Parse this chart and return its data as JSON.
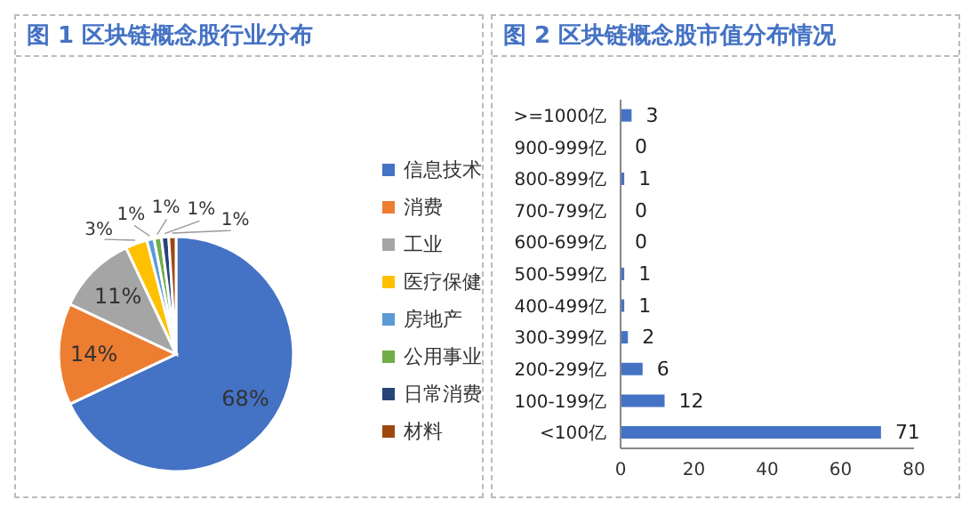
{
  "chart_data": [
    {
      "type": "pie",
      "title": "图 1 区块链概念股行业分布",
      "categories": [
        "信息技术",
        "消费",
        "工业",
        "医疗保健",
        "房地产",
        "公用事业",
        "日常消费",
        "材料"
      ],
      "values": [
        68,
        14,
        11,
        3,
        1,
        1,
        1,
        1
      ],
      "colors": [
        "#4472c4",
        "#ed7d31",
        "#a5a5a5",
        "#ffc000",
        "#5b9bd5",
        "#70ad47",
        "#264478",
        "#9e480e"
      ],
      "value_labels": [
        "68%",
        "14%",
        "11%",
        "3%",
        "1%",
        "1%",
        "1%",
        "1%"
      ],
      "legend": "right"
    },
    {
      "type": "bar",
      "orientation": "horizontal",
      "title": "图 2 区块链概念股市值分布情况",
      "categories": [
        ">=1000亿",
        "900-999亿",
        "800-899亿",
        "700-799亿",
        "600-699亿",
        "500-599亿",
        "400-499亿",
        "300-399亿",
        "200-299亿",
        "100-199亿",
        "<100亿"
      ],
      "values": [
        3,
        0,
        1,
        0,
        0,
        1,
        1,
        2,
        6,
        12,
        71
      ],
      "color": "#4472c4",
      "xlim": [
        0,
        80
      ],
      "xticks": [
        0,
        20,
        40,
        60,
        80
      ],
      "data_labels": true,
      "grid": false,
      "legend": false
    }
  ]
}
